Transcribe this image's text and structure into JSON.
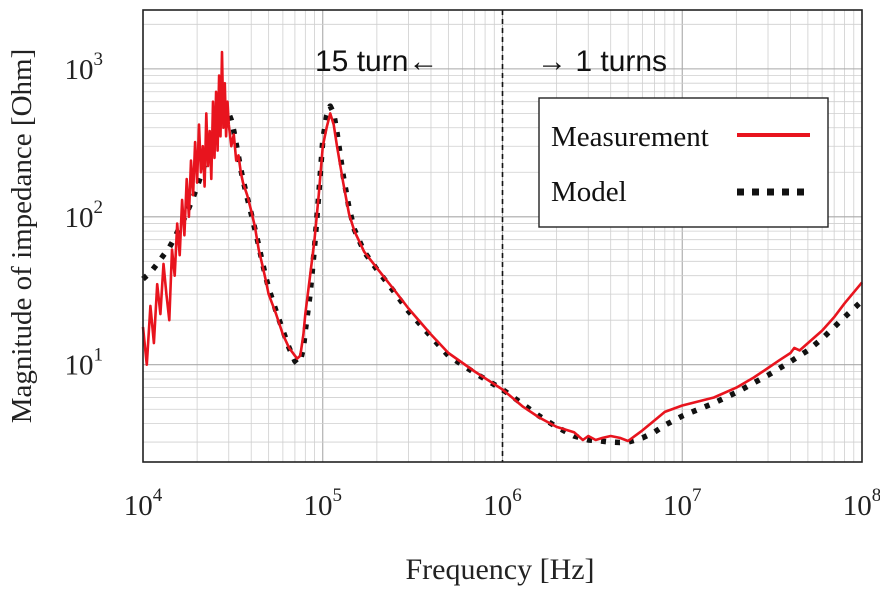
{
  "chart_data": {
    "type": "line",
    "title": "",
    "xlabel": "Frequency  [Hz]",
    "ylabel": "Magnitude of impedance [Ohm]",
    "x_scale": "log",
    "y_scale": "log",
    "xlim": [
      10000,
      100000000
    ],
    "ylim": [
      2.2,
      2500
    ],
    "grid": true,
    "legend_position": "top-right",
    "x_ticks": [
      {
        "value": 10000,
        "base": "10",
        "exp": "4"
      },
      {
        "value": 100000,
        "base": "10",
        "exp": "5"
      },
      {
        "value": 1000000,
        "base": "10",
        "exp": "6"
      },
      {
        "value": 10000000,
        "base": "10",
        "exp": "7"
      },
      {
        "value": 100000000,
        "base": "10",
        "exp": "8"
      }
    ],
    "y_ticks": [
      {
        "value": 10,
        "base": "10",
        "exp": "1"
      },
      {
        "value": 100,
        "base": "10",
        "exp": "2"
      },
      {
        "value": 1000,
        "base": "10",
        "exp": "3"
      }
    ],
    "annotations": {
      "divider_x": 1000000,
      "left_region_label": "15 turn←",
      "right_region_label": "→ 1 turns"
    },
    "series": [
      {
        "name": "Measurement",
        "style": "solid",
        "color": "#e8141e",
        "x": [
          10000,
          10500,
          11000,
          11500,
          12000,
          12500,
          13000,
          13500,
          14000,
          14500,
          15000,
          15500,
          16000,
          16500,
          17000,
          17500,
          18000,
          18500,
          19000,
          19500,
          20000,
          20500,
          21000,
          21500,
          22000,
          22500,
          23000,
          23500,
          24000,
          24500,
          25000,
          25500,
          26000,
          26500,
          27000,
          27500,
          28000,
          28500,
          29000,
          29500,
          30000,
          31000,
          32000,
          33000,
          34000,
          35000,
          36000,
          38000,
          40000,
          42000,
          44000,
          46000,
          48000,
          50000,
          55000,
          60000,
          65000,
          70000,
          72000,
          75000,
          78000,
          80000,
          85000,
          90000,
          95000,
          100000,
          105000,
          110000,
          115000,
          120000,
          130000,
          140000,
          150000,
          170000,
          200000,
          250000,
          300000,
          400000,
          500000,
          700000,
          1000000,
          1300000,
          1600000,
          2000000,
          2500000,
          2800000,
          3000000,
          3300000,
          3600000,
          4000000,
          4500000,
          5000000,
          6000000,
          7000000,
          8000000,
          10000000,
          15000000,
          20000000,
          25000000,
          30000000,
          35000000,
          40000000,
          42000000,
          45000000,
          50000000,
          60000000,
          70000000,
          80000000,
          100000000
        ],
        "y": [
          18,
          10,
          25,
          14,
          35,
          22,
          48,
          30,
          20,
          60,
          40,
          90,
          55,
          130,
          75,
          180,
          100,
          240,
          140,
          320,
          170,
          420,
          200,
          300,
          160,
          500,
          220,
          380,
          180,
          600,
          250,
          700,
          280,
          900,
          350,
          1300,
          400,
          800,
          350,
          600,
          420,
          300,
          360,
          240,
          260,
          200,
          170,
          140,
          110,
          85,
          60,
          48,
          38,
          30,
          22,
          16,
          13,
          11.5,
          11,
          11.5,
          16,
          22,
          40,
          70,
          140,
          300,
          400,
          500,
          420,
          300,
          170,
          105,
          80,
          58,
          45,
          32,
          24,
          16,
          12,
          9,
          6.8,
          5.2,
          4.4,
          3.8,
          3.5,
          3.1,
          3.3,
          3.1,
          3.2,
          3.3,
          3.2,
          3.05,
          3.6,
          4.2,
          4.8,
          5.3,
          6,
          7,
          8.2,
          9.5,
          10.8,
          12,
          13,
          12.5,
          14,
          17,
          21,
          26,
          36
        ]
      },
      {
        "name": "Model",
        "style": "dotted",
        "color": "#111111",
        "x": [
          10000,
          11000,
          12000,
          13000,
          14000,
          15000,
          16000,
          17000,
          18000,
          19000,
          20000,
          21000,
          22000,
          23000,
          24000,
          25000,
          26000,
          27000,
          28000,
          29000,
          30000,
          31000,
          32000,
          33000,
          34000,
          35000,
          36000,
          38000,
          40000,
          42000,
          44000,
          46000,
          48000,
          50000,
          55000,
          60000,
          65000,
          70000,
          72000,
          75000,
          78000,
          80000,
          85000,
          90000,
          95000,
          100000,
          105000,
          110000,
          115000,
          120000,
          130000,
          140000,
          150000,
          170000,
          200000,
          250000,
          300000,
          400000,
          500000,
          700000,
          1000000,
          1300000,
          1600000,
          2000000,
          2500000,
          3000000,
          3500000,
          4000000,
          4500000,
          5000000,
          6000000,
          7000000,
          8000000,
          10000000,
          15000000,
          20000000,
          30000000,
          40000000,
          50000000,
          60000000,
          70000000,
          80000000,
          100000000
        ],
        "y": [
          38,
          42,
          48,
          55,
          62,
          72,
          85,
          98,
          115,
          135,
          160,
          190,
          225,
          265,
          310,
          360,
          410,
          460,
          500,
          520,
          500,
          450,
          380,
          310,
          255,
          210,
          178,
          135,
          105,
          82,
          64,
          50,
          40,
          33,
          23,
          17,
          13,
          10.6,
          10.2,
          10.6,
          13,
          17,
          30,
          62,
          140,
          330,
          480,
          560,
          500,
          370,
          190,
          115,
          82,
          58,
          44,
          31,
          23,
          15.5,
          11.5,
          8.8,
          6.8,
          5.4,
          4.5,
          3.8,
          3.3,
          3.1,
          3.05,
          3.0,
          2.98,
          3.0,
          3.2,
          3.5,
          3.9,
          4.5,
          5.5,
          6.5,
          8.5,
          10.5,
          12.5,
          15,
          18,
          21,
          27
        ]
      }
    ]
  }
}
